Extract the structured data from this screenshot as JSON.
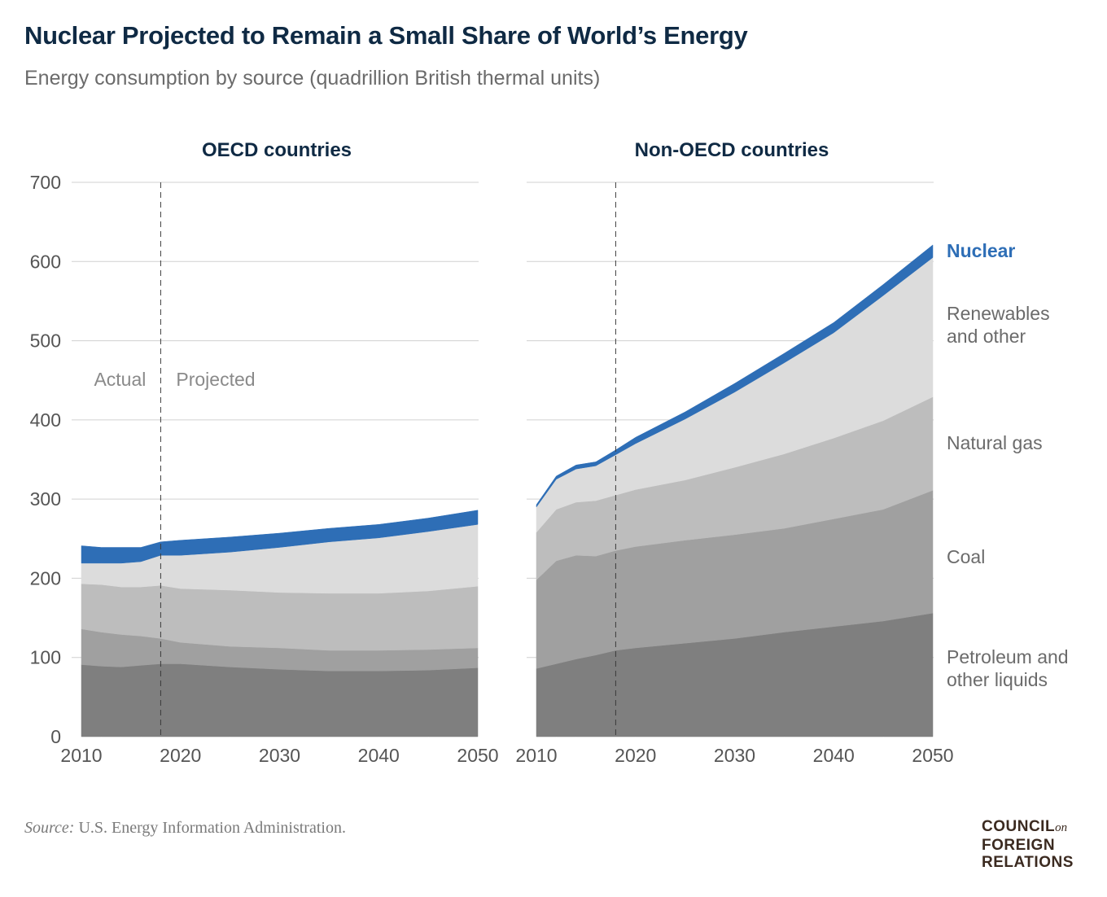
{
  "title": "Nuclear Projected to Remain a Small Share of World’s Energy",
  "subtitle": "Energy consumption by source (quadrillion British thermal units)",
  "source": {
    "prefix": "Source:",
    "text": " U.S. Energy Information Administration."
  },
  "logo": {
    "line1": "COUNCIL",
    "on": "on",
    "line2": "FOREIGN",
    "line3": "RELATIONS"
  },
  "colors": {
    "petroleum": "#7f7f7f",
    "coal": "#a0a0a0",
    "gas": "#bdbdbd",
    "renewables": "#dcdcdc",
    "nuclear": "#2e6eb6",
    "axis_text": "#555555",
    "grid": "#d0d0d0",
    "panel_title": "#0f2a44"
  },
  "chart_data": [
    {
      "type": "area",
      "stacked": true,
      "title": "OECD countries",
      "x": [
        2010,
        2012,
        2014,
        2016,
        2018,
        2020,
        2025,
        2030,
        2035,
        2040,
        2045,
        2050
      ],
      "ylim": [
        0,
        700
      ],
      "yticks": [
        0,
        100,
        200,
        300,
        400,
        500,
        600,
        700
      ],
      "xticks": [
        2010,
        2020,
        2030,
        2040,
        2050
      ],
      "divider_x": 2018,
      "divider_labels": {
        "left": "Actual",
        "right": "Projected"
      },
      "grid": true,
      "series": [
        {
          "name": "Petroleum and other liquids",
          "key": "petroleum",
          "values": [
            91,
            89,
            88,
            90,
            92,
            92,
            88,
            85,
            83,
            83,
            84,
            87
          ]
        },
        {
          "name": "Coal",
          "key": "coal",
          "values": [
            45,
            43,
            41,
            37,
            32,
            27,
            26,
            27,
            26,
            26,
            26,
            25
          ]
        },
        {
          "name": "Natural gas",
          "key": "gas",
          "values": [
            57,
            60,
            60,
            62,
            67,
            68,
            71,
            70,
            72,
            72,
            74,
            78
          ]
        },
        {
          "name": "Renewables and other",
          "key": "renewables",
          "values": [
            26,
            27,
            30,
            32,
            38,
            42,
            48,
            57,
            65,
            70,
            75,
            78
          ]
        },
        {
          "name": "Nuclear",
          "key": "nuclear",
          "values": [
            22,
            20,
            20,
            18,
            17,
            19,
            19,
            18,
            17,
            17,
            17,
            18
          ]
        }
      ]
    },
    {
      "type": "area",
      "stacked": true,
      "title": "Non-OECD countries",
      "x": [
        2010,
        2012,
        2014,
        2016,
        2018,
        2020,
        2025,
        2030,
        2035,
        2040,
        2045,
        2050
      ],
      "ylim": [
        0,
        700
      ],
      "yticks": [
        0,
        100,
        200,
        300,
        400,
        500,
        600,
        700
      ],
      "xticks": [
        2010,
        2020,
        2030,
        2040,
        2050
      ],
      "divider_x": 2018,
      "grid": true,
      "series": [
        {
          "name": "Petroleum and other liquids",
          "key": "petroleum",
          "values": [
            86,
            92,
            98,
            103,
            109,
            112,
            118,
            124,
            132,
            139,
            146,
            156
          ]
        },
        {
          "name": "Coal",
          "key": "coal",
          "values": [
            112,
            130,
            131,
            125,
            126,
            128,
            130,
            131,
            131,
            136,
            141,
            155
          ]
        },
        {
          "name": "Natural gas",
          "key": "gas",
          "values": [
            60,
            65,
            67,
            70,
            70,
            72,
            76,
            85,
            94,
            102,
            112,
            118
          ]
        },
        {
          "name": "Renewables and other",
          "key": "renewables",
          "values": [
            32,
            38,
            42,
            44,
            51,
            58,
            77,
            95,
            115,
            133,
            158,
            176
          ]
        },
        {
          "name": "Nuclear",
          "key": "nuclear",
          "values": [
            3,
            4,
            5,
            5,
            6,
            8,
            9,
            11,
            12,
            13,
            14,
            16
          ]
        }
      ]
    }
  ],
  "legend_labels": {
    "nuclear": "Nuclear",
    "renewables": [
      "Renewables",
      "and other"
    ],
    "gas": "Natural gas",
    "coal": "Coal",
    "petroleum": [
      "Petroleum and",
      "other liquids"
    ]
  }
}
